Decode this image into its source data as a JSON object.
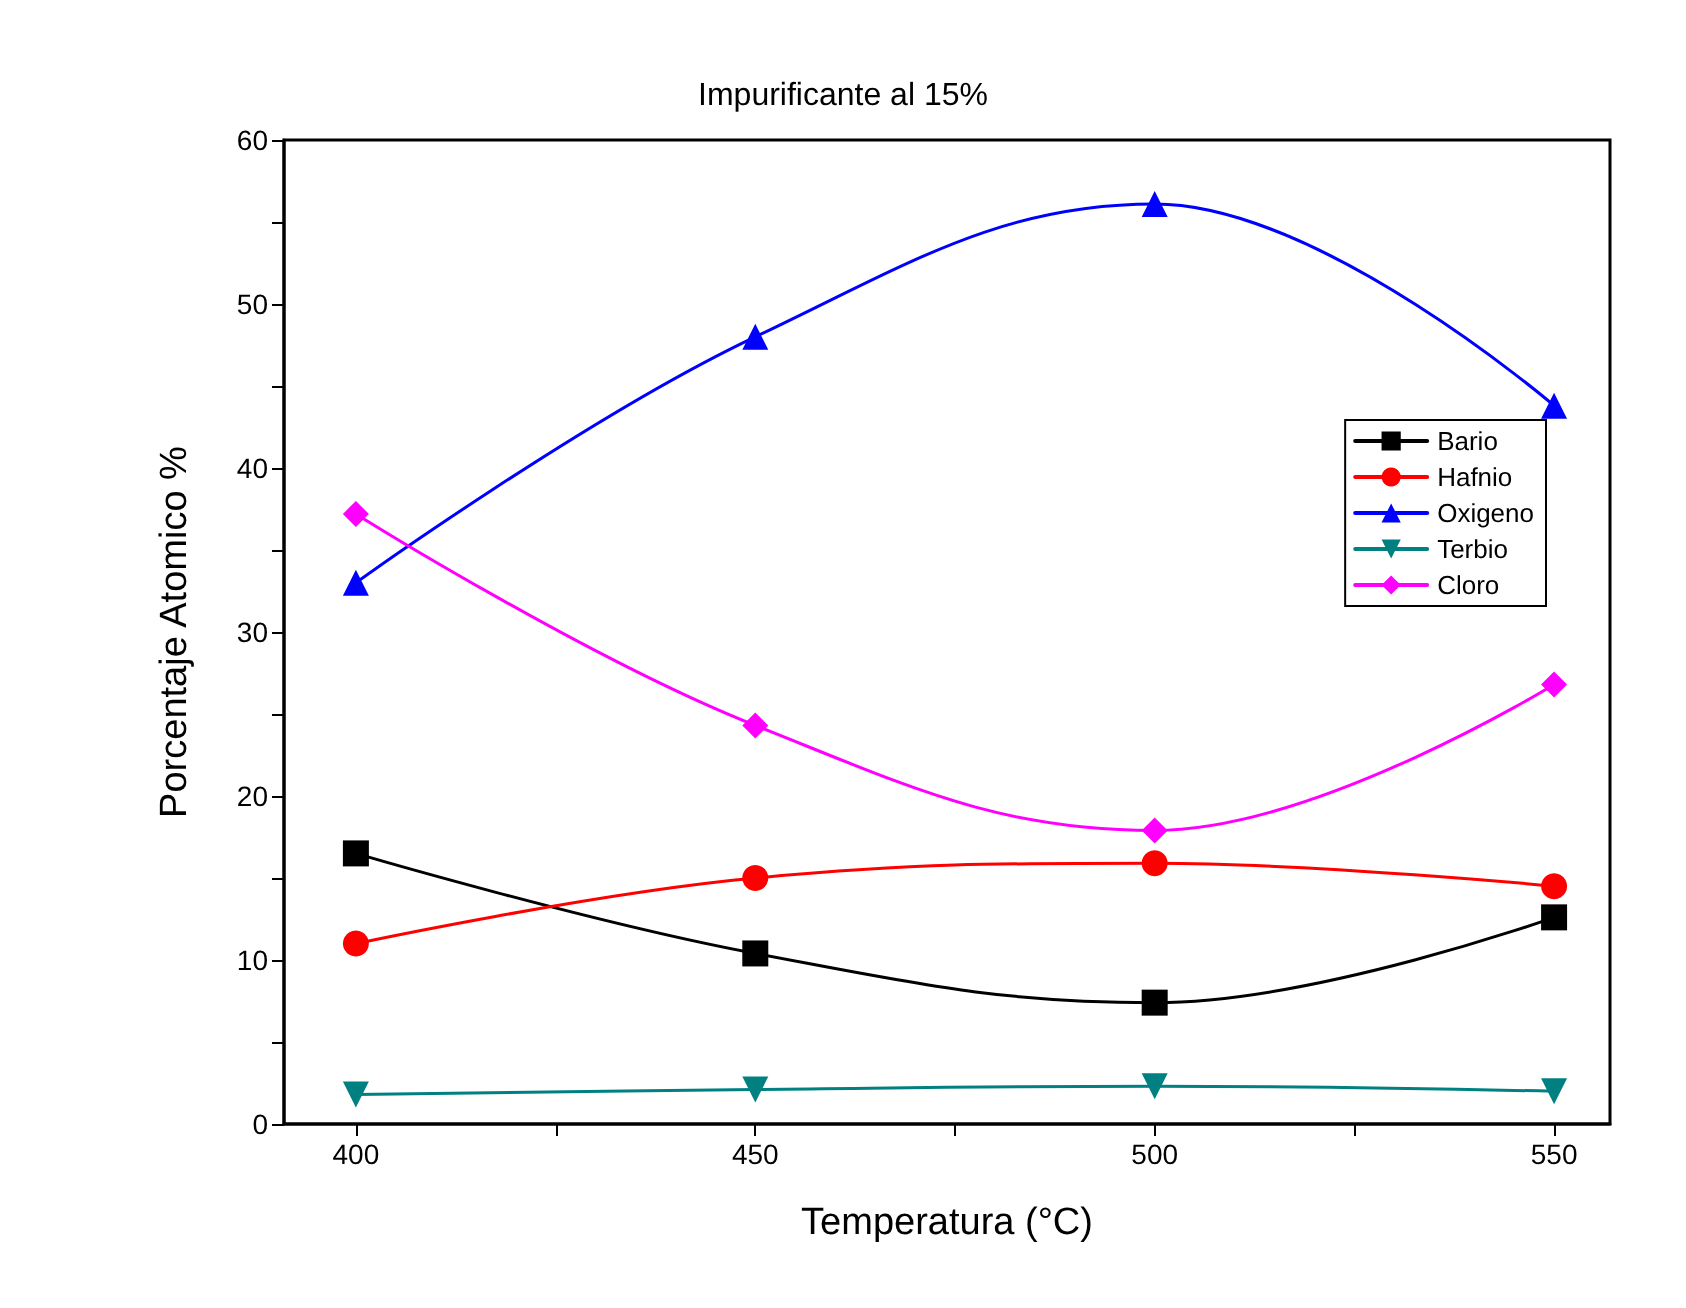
{
  "chart_data": {
    "type": "line",
    "title": "Impurificante al 15%",
    "xlabel": "Temperatura (°C)",
    "ylabel": "Porcentaje Atomico %",
    "x": [
      400,
      450,
      500,
      550
    ],
    "series": [
      {
        "name": "Bario",
        "color": "#000000",
        "marker": "square",
        "values": [
          16.5,
          10.4,
          7.4,
          12.6
        ]
      },
      {
        "name": "Hafnio",
        "color": "#ff0000",
        "marker": "circle",
        "values": [
          11.0,
          15.0,
          15.9,
          14.5
        ]
      },
      {
        "name": "Oxigeno",
        "color": "#0000ff",
        "marker": "triangle",
        "values": [
          33.0,
          48.0,
          56.1,
          43.8
        ]
      },
      {
        "name": "Terbio",
        "color": "#008080",
        "marker": "triangle-down",
        "values": [
          1.8,
          2.1,
          2.3,
          2.0
        ]
      },
      {
        "name": "Cloro",
        "color": "#ff00ff",
        "marker": "diamond",
        "values": [
          37.2,
          24.3,
          17.9,
          26.8
        ]
      }
    ],
    "xlim": [
      391,
      557
    ],
    "xticks": [
      400,
      {
        "value": 425,
        "label": null
      },
      450,
      {
        "value": 475,
        "label": null
      },
      500,
      {
        "value": 525,
        "label": null
      },
      550
    ],
    "ylim": [
      0,
      60
    ],
    "yticks": [
      0,
      {
        "value": 5,
        "label": null
      },
      10,
      {
        "value": 15,
        "label": null
      },
      20,
      {
        "value": 25,
        "label": null
      },
      30,
      {
        "value": 35,
        "label": null
      },
      40,
      {
        "value": 45,
        "label": null
      },
      50,
      {
        "value": 55,
        "label": null
      },
      60
    ],
    "legend": "top right",
    "grid": false,
    "line_style": "solid"
  }
}
